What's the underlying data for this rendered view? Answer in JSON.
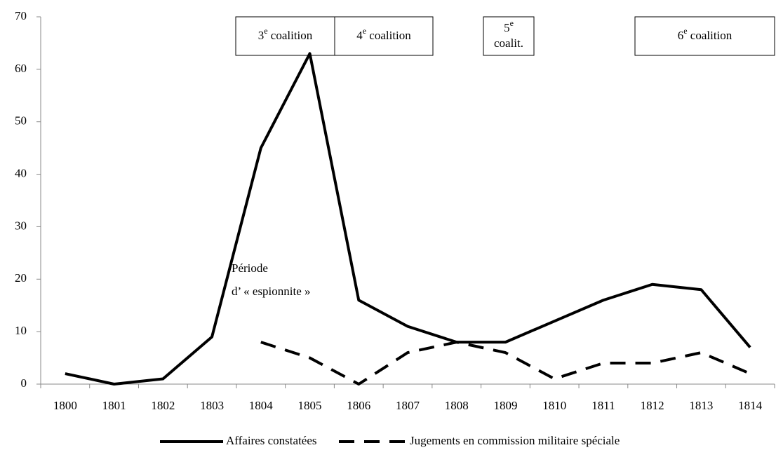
{
  "chart_data": {
    "type": "line",
    "categories": [
      "1800",
      "1801",
      "1802",
      "1803",
      "1804",
      "1805",
      "1806",
      "1807",
      "1808",
      "1809",
      "1810",
      "1811",
      "1812",
      "1813",
      "1814"
    ],
    "series": [
      {
        "name": "Affaires constatées",
        "color": "#000000",
        "dash": false,
        "values": [
          2,
          0,
          1,
          9,
          45,
          63,
          16,
          11,
          8,
          8,
          12,
          16,
          19,
          18,
          7
        ]
      },
      {
        "name": "Jugements en commission militaire spéciale",
        "color": "#000000",
        "dash": true,
        "values": [
          null,
          null,
          null,
          null,
          8,
          5,
          0,
          6,
          8,
          6,
          1,
          4,
          4,
          6,
          2
        ]
      }
    ],
    "ylim": [
      0,
      70
    ],
    "yticks": [
      0,
      10,
      20,
      30,
      40,
      50,
      60,
      70
    ],
    "grid": false,
    "legend": "bottom",
    "coalitions": [
      {
        "lines": [
          {
            "pre": "3",
            "sup": "e",
            "post": " coalition"
          }
        ]
      },
      {
        "lines": [
          {
            "pre": "4",
            "sup": "e",
            "post": " coalition"
          }
        ]
      },
      {
        "lines": [
          {
            "pre": "5",
            "sup": "e",
            "post": ""
          },
          {
            "pre": "coalit.",
            "sup": "",
            "post": ""
          }
        ]
      },
      {
        "lines": [
          {
            "pre": "6",
            "sup": "e",
            "post": " coalition"
          }
        ]
      }
    ],
    "annotation": [
      "Période",
      "d’ « espionnite »"
    ]
  }
}
